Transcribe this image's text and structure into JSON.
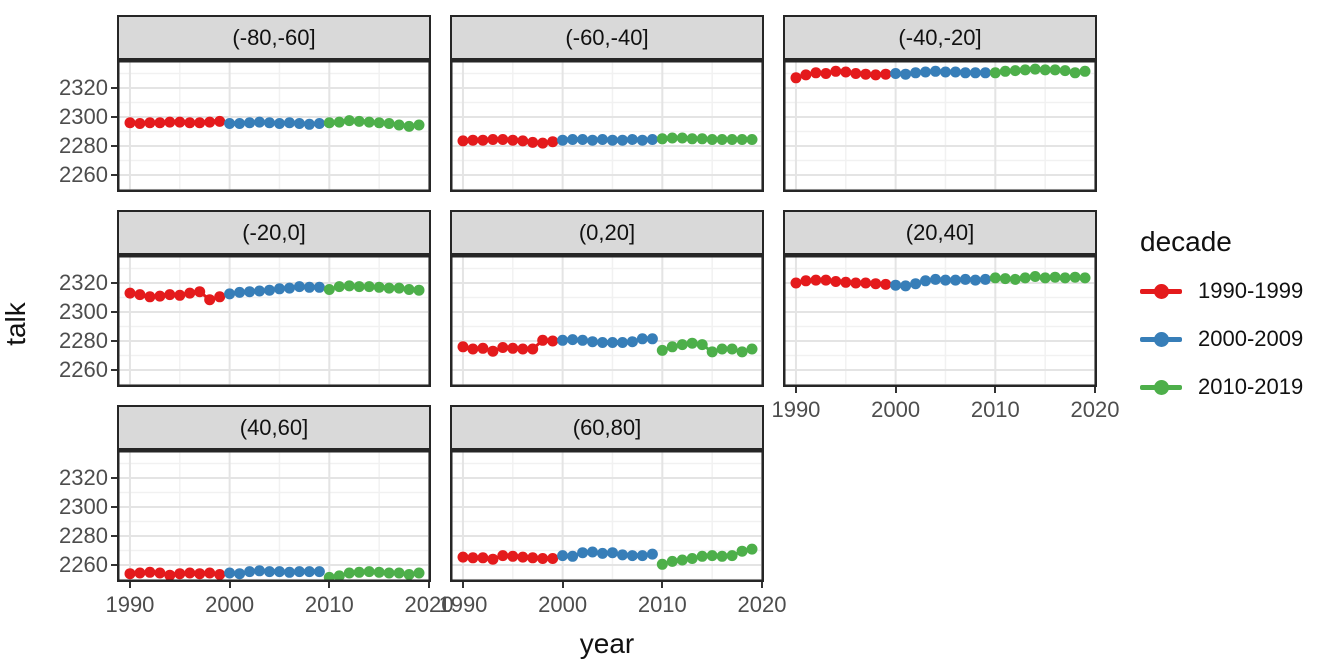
{
  "chart_data": {
    "type": "scatter",
    "title": "",
    "xlabel": "year",
    "ylabel": "talk",
    "xlim": [
      1988.7,
      2020.2
    ],
    "ylim": [
      2248.3,
      2339.3
    ],
    "grid": true,
    "x_ticks": [
      "1990",
      "2000",
      "2010",
      "2020"
    ],
    "y_ticks": [
      "2320",
      "2300",
      "2280",
      "2260"
    ],
    "x_minor": [
      1995,
      2005,
      2015
    ],
    "y_minor": [
      2250,
      2270,
      2290,
      2310,
      2330
    ],
    "years_start": 1990,
    "legend": {
      "title": "decade",
      "position": "right",
      "entries": [
        {
          "label": "1990-1999",
          "color": "#E41A1C"
        },
        {
          "label": "2000-2009",
          "color": "#377EB8"
        },
        {
          "label": "2010-2019",
          "color": "#4DAF4A"
        }
      ]
    },
    "facets": [
      {
        "label": "(-80,-60]",
        "values": [
          2296,
          2295.5,
          2296,
          2296,
          2296.5,
          2296.5,
          2296,
          2296,
          2296.5,
          2297,
          2295.5,
          2295.5,
          2296,
          2296.5,
          2296,
          2295.5,
          2296,
          2295.5,
          2295,
          2295.5,
          2296,
          2296.5,
          2297.5,
          2297,
          2296.5,
          2296,
          2295.5,
          2294.5,
          2293.5,
          2294.5
        ]
      },
      {
        "label": "(-60,-40]",
        "values": [
          2283.5,
          2284,
          2284,
          2284.5,
          2284.5,
          2284,
          2283.5,
          2282.5,
          2282,
          2283,
          2284,
          2284.5,
          2284.5,
          2284,
          2284.5,
          2284,
          2284,
          2284.5,
          2284,
          2284.5,
          2285,
          2285.5,
          2285.5,
          2285,
          2285,
          2284.5,
          2284.5,
          2284.5,
          2284.5,
          2284.5
        ]
      },
      {
        "label": "(-40,-20]",
        "values": [
          2327,
          2329,
          2330.5,
          2330,
          2331.5,
          2331,
          2330,
          2329.5,
          2329,
          2329.5,
          2330,
          2329.5,
          2330.5,
          2331,
          2331.5,
          2331,
          2331,
          2330.5,
          2330.5,
          2330.5,
          2330.5,
          2331.5,
          2332,
          2332.5,
          2333,
          2332.5,
          2332.5,
          2332,
          2330.5,
          2331.5
        ]
      },
      {
        "label": "(-20,0]",
        "values": [
          2313,
          2312,
          2310.5,
          2311,
          2312,
          2311.5,
          2313,
          2314,
          2308.5,
          2310.5,
          2312.5,
          2313.5,
          2314,
          2314.5,
          2315,
          2316,
          2316.5,
          2317.5,
          2317,
          2317,
          2315.5,
          2317.5,
          2318,
          2317.5,
          2317.5,
          2317,
          2316.5,
          2316.5,
          2315.5,
          2315
        ]
      },
      {
        "label": "(0,20]",
        "values": [
          2276,
          2274.5,
          2275,
          2273,
          2275.5,
          2275,
          2274.5,
          2274.5,
          2280.5,
          2280,
          2280.5,
          2281,
          2280.5,
          2279.5,
          2279,
          2279,
          2279,
          2279.5,
          2281.5,
          2281.5,
          2273.5,
          2276,
          2277.5,
          2278.5,
          2277.5,
          2272.5,
          2274.5,
          2274.5,
          2272.5,
          2274.5
        ]
      },
      {
        "label": "(20,40]",
        "values": [
          2320,
          2321.5,
          2322,
          2322,
          2321,
          2320.5,
          2320,
          2320,
          2319.5,
          2319,
          2318.5,
          2318,
          2319.5,
          2321.5,
          2322.5,
          2322,
          2322,
          2322.5,
          2322,
          2322.5,
          2323.5,
          2323,
          2322.5,
          2323.5,
          2324.5,
          2323.5,
          2324,
          2323.5,
          2324,
          2323.5
        ]
      },
      {
        "label": "(40,60]",
        "values": [
          2254,
          2254.5,
          2255,
          2254.5,
          2253,
          2254,
          2254.5,
          2254,
          2254.5,
          2253.5,
          2254.5,
          2254,
          2255.5,
          2256,
          2255.5,
          2255.5,
          2255,
          2255.5,
          2255.5,
          2255.5,
          2251.5,
          2252.5,
          2254.5,
          2255,
          2255.5,
          2255,
          2254.5,
          2254.5,
          2253.5,
          2254.5
        ]
      },
      {
        "label": "(60,80]",
        "values": [
          2265.5,
          2265,
          2265,
          2264,
          2266.5,
          2266,
          2265.5,
          2265,
          2264.5,
          2264.5,
          2266.5,
          2266,
          2268.5,
          2269,
          2268,
          2268.5,
          2267,
          2266.5,
          2266.5,
          2267.5,
          2260.5,
          2262.5,
          2263.5,
          2264.5,
          2266,
          2266.5,
          2266,
          2266.5,
          2269.5,
          2271
        ]
      }
    ]
  }
}
